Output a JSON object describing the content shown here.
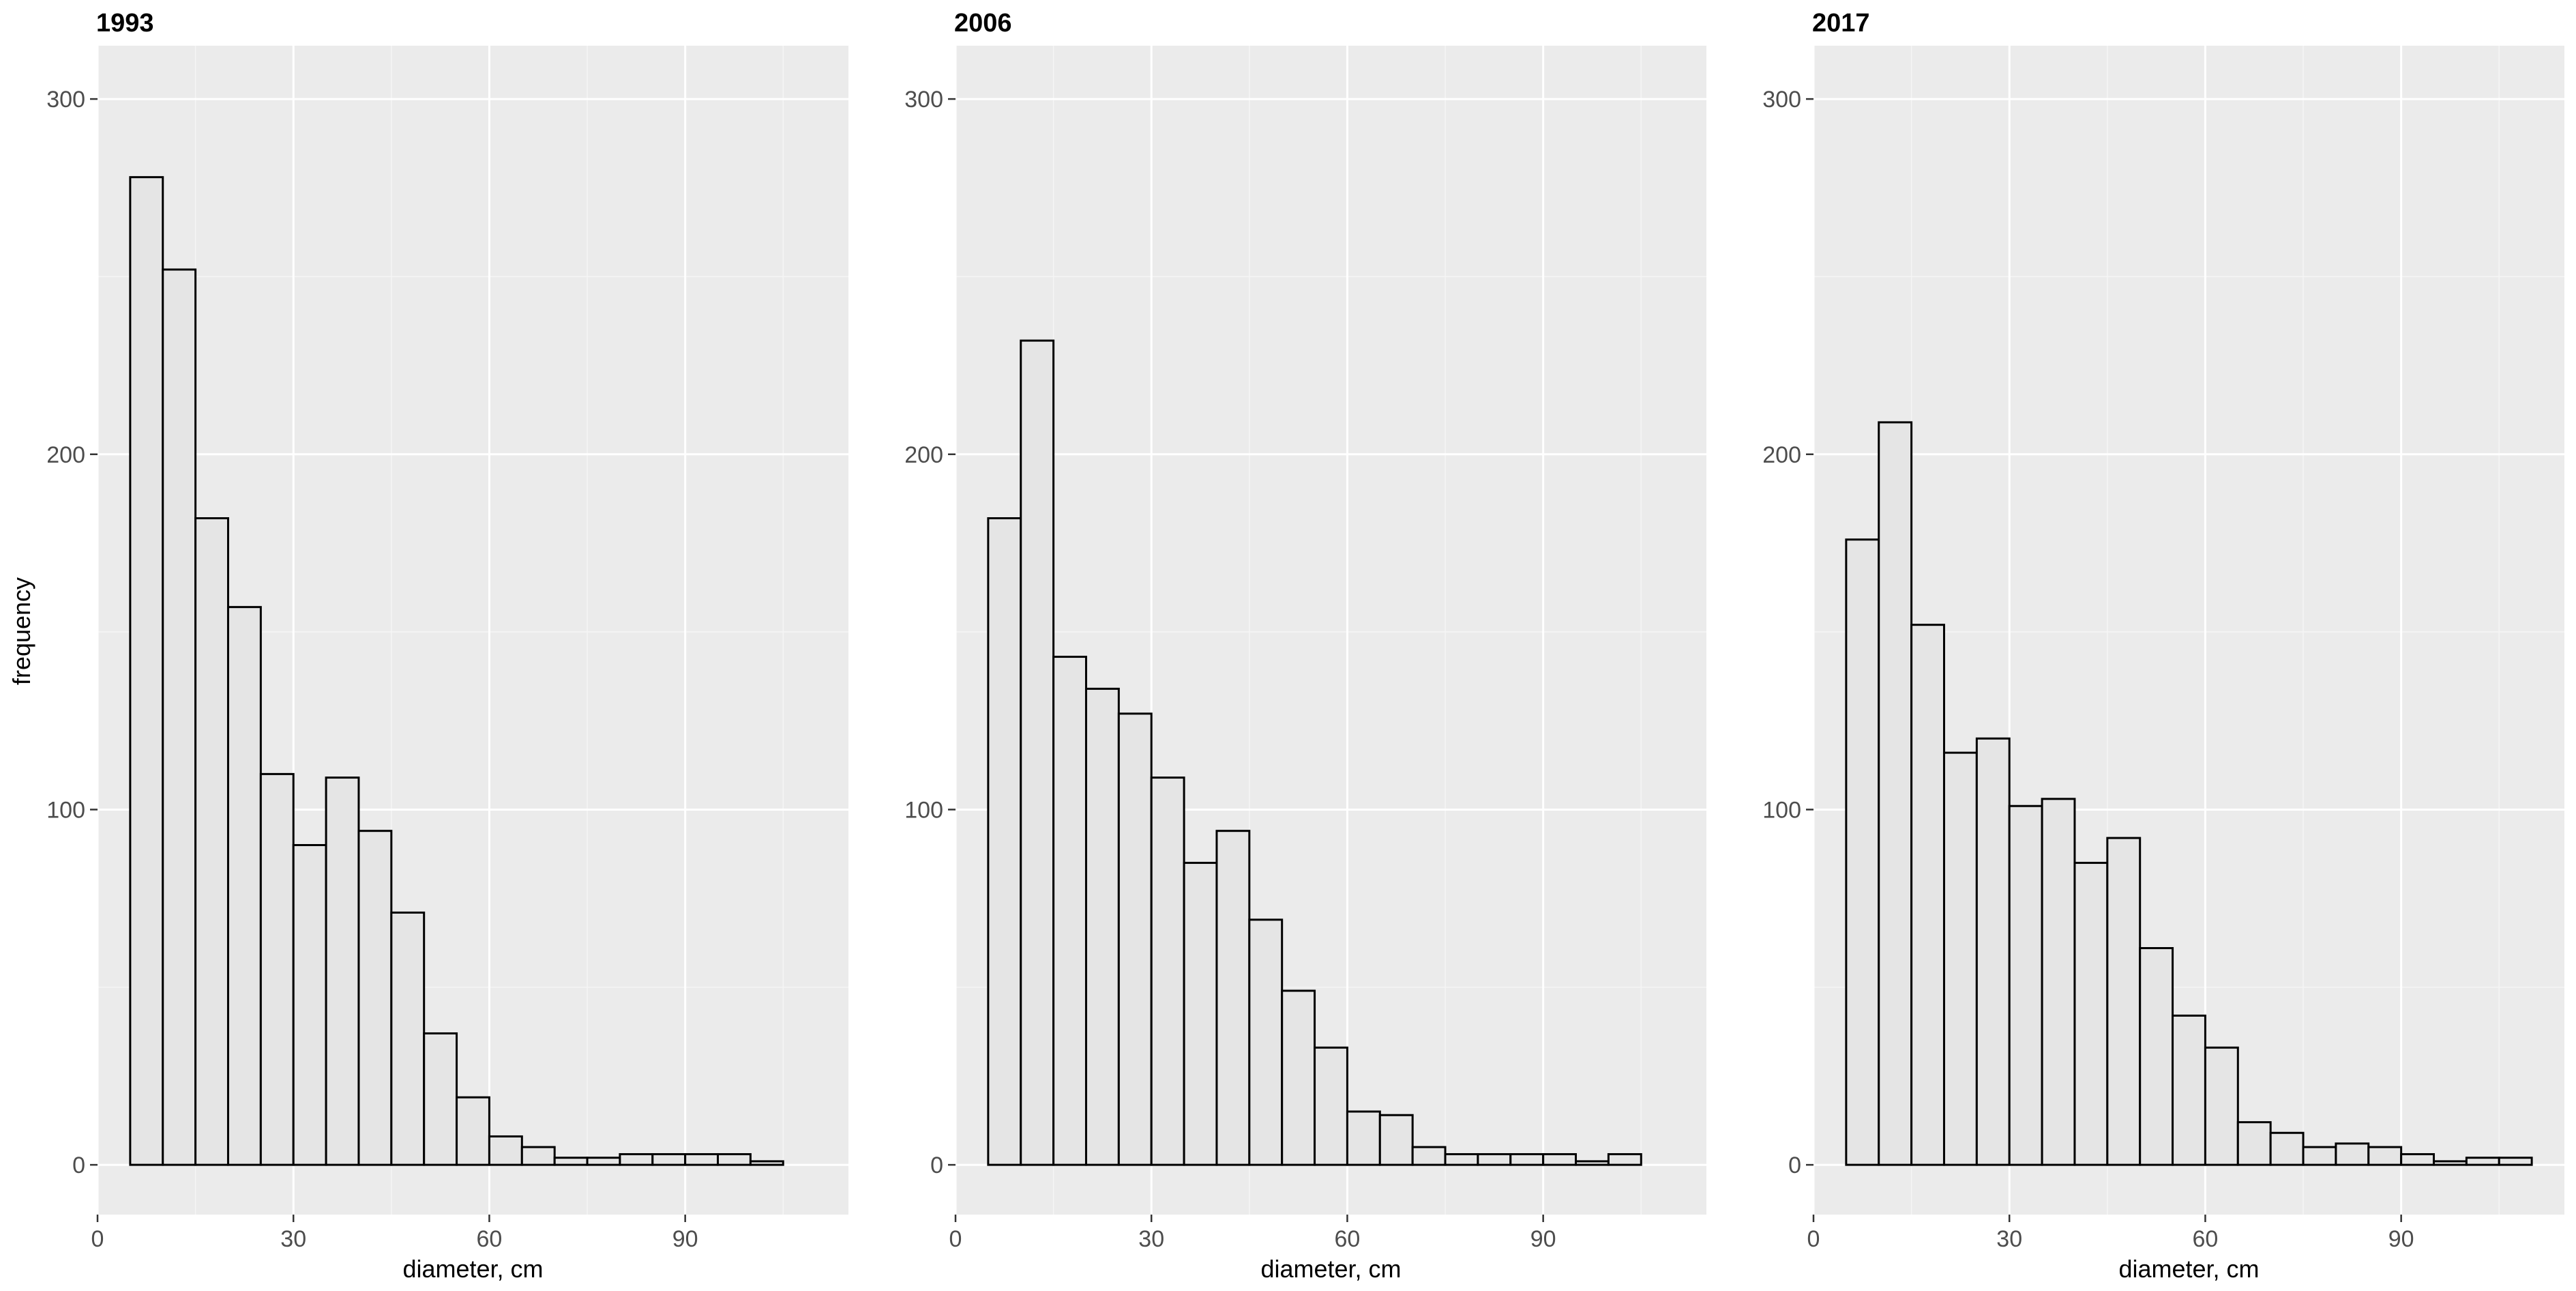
{
  "ylabel": "frequency",
  "chart_data": [
    {
      "type": "bar",
      "title": "1993",
      "xlabel": "diameter, cm",
      "ylabel": "frequency",
      "bin_width": 5,
      "bin_starts": [
        5,
        10,
        15,
        20,
        25,
        30,
        35,
        40,
        45,
        50,
        55,
        60,
        65,
        70,
        75,
        80,
        85,
        90,
        95,
        100,
        105
      ],
      "values": [
        278,
        252,
        182,
        157,
        110,
        90,
        109,
        94,
        71,
        37,
        19,
        8,
        5,
        2,
        2,
        3,
        3,
        3,
        3,
        1,
        0
      ],
      "xlim": [
        0,
        115
      ],
      "ylim": [
        -14,
        315
      ],
      "xticks": [
        0,
        30,
        60,
        90
      ],
      "yticks": [
        0,
        100,
        200,
        300
      ],
      "grid": true,
      "legend": "none",
      "bar_fill": "#e5e5e5",
      "bar_outline": "#000000",
      "panel_background": "#ebebeb"
    },
    {
      "type": "bar",
      "title": "2006",
      "xlabel": "diameter, cm",
      "ylabel": "",
      "bin_width": 5,
      "bin_starts": [
        5,
        10,
        15,
        20,
        25,
        30,
        35,
        40,
        45,
        50,
        55,
        60,
        65,
        70,
        75,
        80,
        85,
        90,
        95,
        100,
        105
      ],
      "values": [
        182,
        232,
        143,
        134,
        127,
        109,
        85,
        94,
        69,
        49,
        33,
        15,
        14,
        5,
        3,
        3,
        3,
        3,
        1,
        3,
        0
      ],
      "xlim": [
        0,
        115
      ],
      "ylim": [
        -14,
        315
      ],
      "xticks": [
        0,
        30,
        60,
        90
      ],
      "yticks": [
        0,
        100,
        200,
        300
      ],
      "grid": true,
      "legend": "none",
      "bar_fill": "#e5e5e5",
      "bar_outline": "#000000",
      "panel_background": "#ebebeb"
    },
    {
      "type": "bar",
      "title": "2017",
      "xlabel": "diameter, cm",
      "ylabel": "",
      "bin_width": 5,
      "bin_starts": [
        5,
        10,
        15,
        20,
        25,
        30,
        35,
        40,
        45,
        50,
        55,
        60,
        65,
        70,
        75,
        80,
        85,
        90,
        95,
        100,
        105
      ],
      "values": [
        176,
        209,
        152,
        116,
        120,
        101,
        103,
        85,
        92,
        61,
        42,
        33,
        12,
        9,
        5,
        6,
        5,
        3,
        1,
        2,
        2
      ],
      "xlim": [
        0,
        115
      ],
      "ylim": [
        -14,
        315
      ],
      "xticks": [
        0,
        30,
        60,
        90
      ],
      "yticks": [
        0,
        100,
        200,
        300
      ],
      "grid": true,
      "legend": "none",
      "bar_fill": "#e5e5e5",
      "bar_outline": "#000000",
      "panel_background": "#ebebeb"
    }
  ]
}
